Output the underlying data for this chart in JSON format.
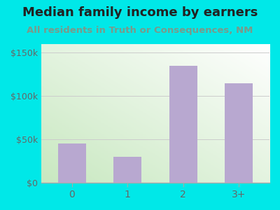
{
  "categories": [
    "0",
    "1",
    "2",
    "3+"
  ],
  "values": [
    45000,
    30000,
    135000,
    115000
  ],
  "bar_color": "#b8a8d0",
  "title": "Median family income by earners",
  "subtitle": "All residents in Truth or Consequences, NM",
  "title_fontsize": 13,
  "subtitle_fontsize": 9.5,
  "title_color": "#222222",
  "subtitle_color": "#7a9a8a",
  "outer_bg_color": "#00e8e8",
  "plot_bg_grad_top_left": "#c8e8c0",
  "plot_bg_grad_bottom_right": "#ffffff",
  "ylim": [
    0,
    160000
  ],
  "yticks": [
    0,
    50000,
    100000,
    150000
  ],
  "ytick_labels": [
    "$0",
    "$50k",
    "$100k",
    "$150k"
  ],
  "bar_width": 0.5
}
